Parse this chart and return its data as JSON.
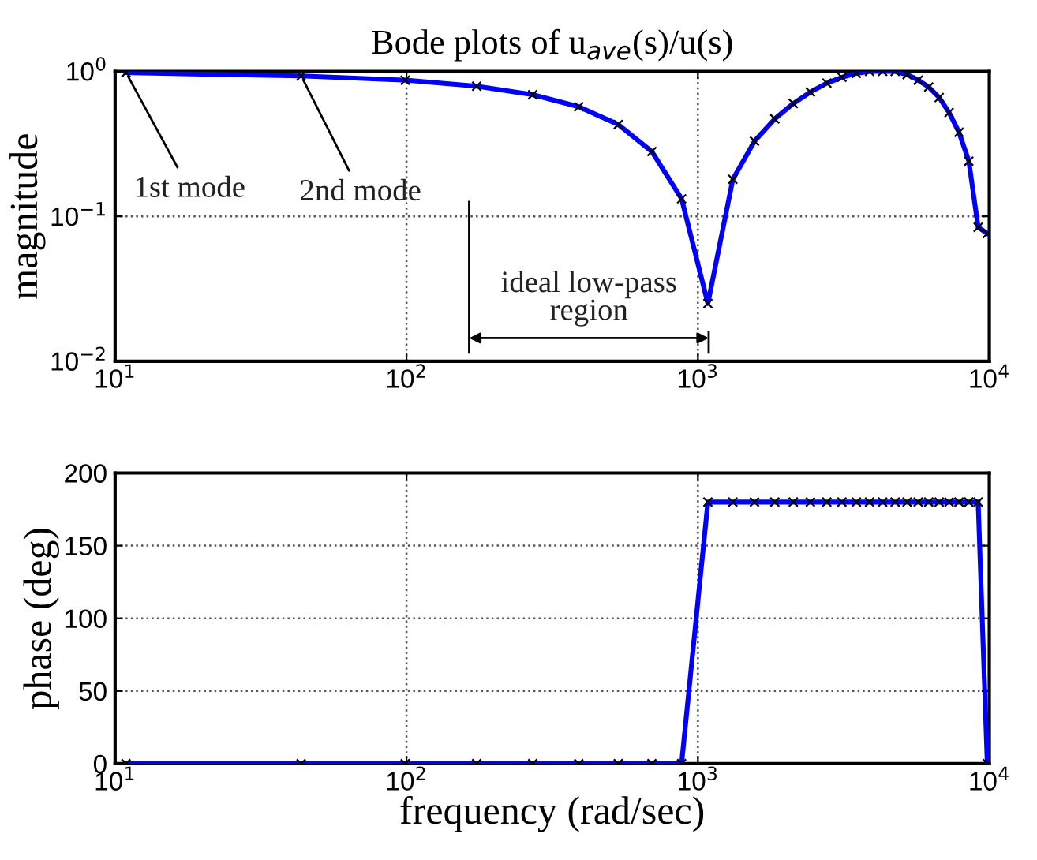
{
  "chart_data": [
    {
      "type": "line",
      "title": "Bode plots of u$_{ave}$(s)/u(s)",
      "ylabel": "magnitude",
      "log": "xy",
      "grid": true,
      "marker": "cross",
      "line_style": "solid",
      "xlim": [
        10,
        10000
      ],
      "xticks": [
        {
          "value": 10,
          "label": "10$^{1}$"
        },
        {
          "value": 100,
          "label": "10$^{2}$"
        },
        {
          "value": 1000,
          "label": "10$^{3}$"
        },
        {
          "value": 10000,
          "label": "10$^{4}$"
        }
      ],
      "ylim": [
        0.01,
        1
      ],
      "yticks": [
        {
          "value": 0.01,
          "label": "10$^{−2}$"
        },
        {
          "value": 0.1,
          "label": "10$^{−1}$"
        },
        {
          "value": 1,
          "label": "10$^{0}$"
        }
      ],
      "annotations": [
        {
          "text": "1st mode",
          "x": 10.9,
          "y": 0.98
        },
        {
          "text": "2nd mode",
          "x": 43.5,
          "y": 0.93
        },
        "ideal low-pass\nregion"
      ],
      "series": [
        {
          "color": "#0000ff",
          "x": [
            10.9,
            43.5,
            99,
            174,
            271,
            390,
            533,
            695,
            879,
            1082,
            1318,
            1564,
            1836,
            2125,
            2432,
            2770,
            3121,
            3499,
            3882,
            4305,
            4753,
            5223,
            5702,
            6195,
            6730,
            7278,
            7870,
            8506,
            9156,
            9843
          ],
          "values": [
            0.98,
            0.93,
            0.87,
            0.79,
            0.69,
            0.57,
            0.43,
            0.28,
            0.132,
            0.025,
            0.18,
            0.33,
            0.47,
            0.6,
            0.72,
            0.83,
            0.91,
            0.97,
            1.0,
            1.0,
            1.0,
            0.95,
            0.87,
            0.78,
            0.66,
            0.52,
            0.38,
            0.24,
            0.084,
            0.076
          ]
        }
      ]
    },
    {
      "type": "line",
      "xlabel": "frequency (rad/sec)",
      "ylabel": "phase (deg)",
      "log": "x",
      "grid": true,
      "marker": "cross",
      "line_style": "solid",
      "xlim": [
        10,
        10000
      ],
      "xticks": [
        {
          "value": 10,
          "label": "10$^{1}$"
        },
        {
          "value": 100,
          "label": "10$^{2}$"
        },
        {
          "value": 1000,
          "label": "10$^{3}$"
        },
        {
          "value": 10000,
          "label": "10$^{4}$"
        }
      ],
      "ylim": [
        0,
        200
      ],
      "yticks": [
        0,
        50,
        100,
        150,
        200
      ],
      "series": [
        {
          "color": "#0000ff",
          "x": [
            10.9,
            43.5,
            99,
            174,
            271,
            390,
            533,
            695,
            879,
            1082,
            1318,
            1564,
            1836,
            2125,
            2432,
            2770,
            3121,
            3499,
            3882,
            4305,
            4753,
            5223,
            5702,
            6195,
            6730,
            7278,
            7870,
            8506,
            9156,
            9843
          ],
          "values": [
            0,
            0,
            0,
            0,
            0,
            0,
            0,
            0,
            0,
            180,
            180,
            180,
            180,
            180,
            180,
            180,
            180,
            180,
            180,
            180,
            180,
            180,
            180,
            180,
            180,
            180,
            180,
            180,
            180,
            0
          ]
        }
      ]
    }
  ]
}
